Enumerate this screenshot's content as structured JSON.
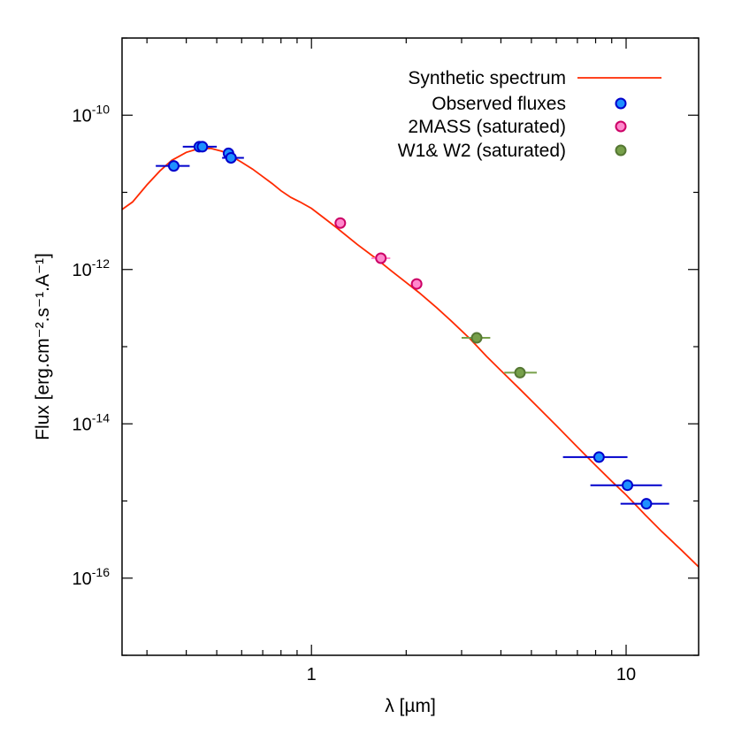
{
  "chart_data": {
    "type": "scatter",
    "xlabel": "λ [µm]",
    "ylabel": "Flux [erg.cm⁻².s⁻¹.A⁻¹]",
    "xscale": "log",
    "yscale": "log",
    "xlim": [
      0.25,
      17
    ],
    "ylim": [
      1e-17,
      1e-09
    ],
    "x_ticks": [
      {
        "value": 1,
        "label": "1"
      },
      {
        "value": 10,
        "label": "10"
      }
    ],
    "y_ticks": [
      {
        "value": 1e-10,
        "base": "10",
        "exp": "-10"
      },
      {
        "value": 1e-12,
        "base": "10",
        "exp": "-12"
      },
      {
        "value": 1e-14,
        "base": "10",
        "exp": "-14"
      },
      {
        "value": 1e-16,
        "base": "10",
        "exp": "-16"
      }
    ],
    "legend_position": "top-right",
    "series": [
      {
        "name": "Synthetic spectrum",
        "kind": "line",
        "color": "#ff2a00",
        "x": [
          0.25,
          0.27,
          0.3,
          0.33,
          0.36,
          0.4,
          0.44,
          0.48,
          0.52,
          0.56,
          0.6,
          0.65,
          0.7,
          0.75,
          0.8,
          0.86,
          0.92,
          1.0,
          1.1,
          1.2,
          1.4,
          1.6,
          1.8,
          2.0,
          2.2,
          2.5,
          2.8,
          3.2,
          3.6,
          4.0,
          4.6,
          5.2,
          6.0,
          7.0,
          8.0,
          9.0,
          10.0,
          11.5,
          13.0,
          15.0,
          17.0
        ],
        "y": [
          6e-12,
          7.5e-12,
          1.25e-11,
          1.9e-11,
          2.6e-11,
          3.3e-11,
          3.7e-11,
          3.7e-11,
          3.4e-11,
          2.9e-11,
          2.45e-11,
          2e-11,
          1.6e-11,
          1.3e-11,
          1.05e-11,
          8.6e-12,
          7.5e-12,
          6.2e-12,
          4.6e-12,
          3.5e-12,
          2.1e-12,
          1.4e-12,
          9.5e-13,
          6.8e-13,
          5e-13,
          3.2e-13,
          2.1e-13,
          1.25e-13,
          7.5e-14,
          4.9e-14,
          2.8e-14,
          1.7e-14,
          9.5e-15,
          5e-15,
          2.9e-15,
          1.8e-15,
          1.2e-15,
          6.6e-16,
          4e-16,
          2.3e-16,
          1.4e-16
        ]
      },
      {
        "name": "Observed fluxes",
        "kind": "points",
        "color": "#1e90ff",
        "edge": "#0000cc",
        "errcolor": "#0000cc",
        "points": [
          {
            "x": 0.365,
            "y": 2.2e-11,
            "xlo": 0.32,
            "xhi": 0.41
          },
          {
            "x": 0.44,
            "y": 3.9e-11,
            "xlo": 0.39,
            "xhi": 0.5
          },
          {
            "x": 0.45,
            "y": 3.9e-11,
            "xlo": 0.44,
            "xhi": 0.46
          },
          {
            "x": 0.545,
            "y": 3.2e-11,
            "xlo": 0.54,
            "xhi": 0.55
          },
          {
            "x": 0.555,
            "y": 2.8e-11,
            "xlo": 0.52,
            "xhi": 0.61
          },
          {
            "x": 8.2,
            "y": 3.7e-15,
            "xlo": 6.3,
            "xhi": 10.1
          },
          {
            "x": 10.1,
            "y": 1.6e-15,
            "xlo": 7.7,
            "xhi": 13.0
          },
          {
            "x": 11.6,
            "y": 9.2e-16,
            "xlo": 9.6,
            "xhi": 13.7
          }
        ]
      },
      {
        "name": "2MASS (saturated)",
        "kind": "points",
        "color": "#ff88cc",
        "edge": "#cc0066",
        "errcolor": "#ff88cc",
        "points": [
          {
            "x": 1.235,
            "y": 4e-12,
            "xlo": 1.2,
            "xhi": 1.27
          },
          {
            "x": 1.662,
            "y": 1.4e-12,
            "xlo": 1.55,
            "xhi": 1.78
          },
          {
            "x": 2.159,
            "y": 6.5e-13,
            "xlo": 2.1,
            "xhi": 2.22
          }
        ]
      },
      {
        "name": "W1& W2 (saturated)",
        "kind": "points",
        "color": "#77a04a",
        "edge": "#557733",
        "errcolor": "#77a04a",
        "points": [
          {
            "x": 3.35,
            "y": 1.3e-13,
            "xlo": 3.0,
            "xhi": 3.7
          },
          {
            "x": 4.6,
            "y": 4.6e-14,
            "xlo": 4.1,
            "xhi": 5.2
          }
        ]
      }
    ]
  }
}
